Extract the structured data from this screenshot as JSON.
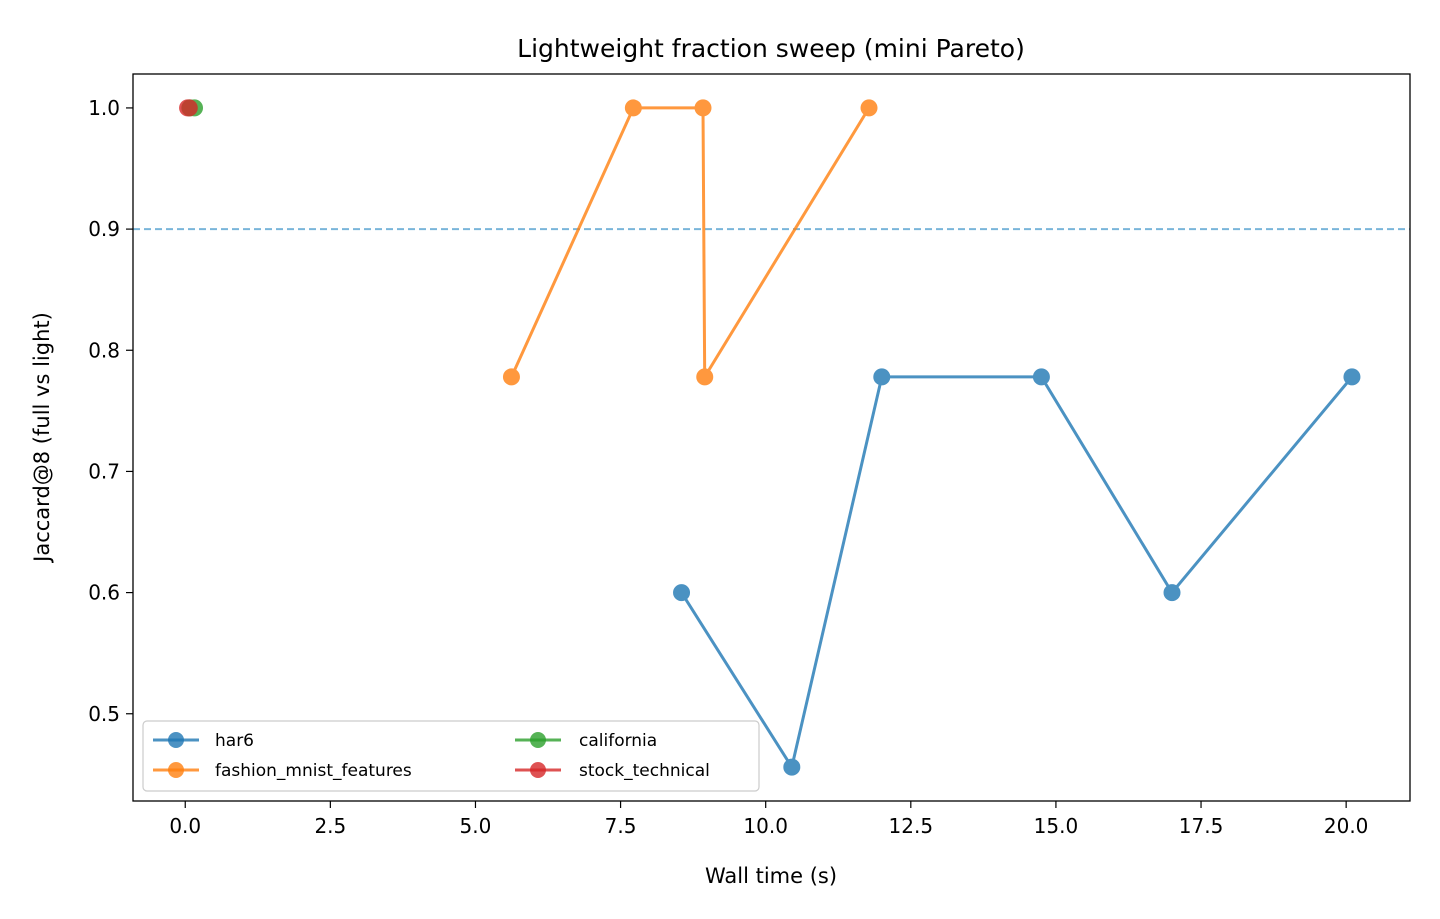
{
  "chart_data": {
    "type": "line",
    "title": "Lightweight fraction sweep (mini Pareto)",
    "xlabel": "Wall time (s)",
    "ylabel": "Jaccard@8 (full vs light)",
    "xlim": [
      -0.9,
      21.1
    ],
    "ylim": [
      0.428,
      1.028
    ],
    "xticks": [
      0.0,
      2.5,
      5.0,
      7.5,
      10.0,
      12.5,
      15.0,
      17.5,
      20.0
    ],
    "xtick_labels": [
      "0.0",
      "2.5",
      "5.0",
      "7.5",
      "10.0",
      "12.5",
      "15.0",
      "17.5",
      "20.0"
    ],
    "yticks": [
      0.5,
      0.6,
      0.7,
      0.8,
      0.9,
      1.0
    ],
    "ytick_labels": [
      "0.5",
      "0.6",
      "0.7",
      "0.8",
      "0.9",
      "1.0"
    ],
    "grid": false,
    "reference_line": {
      "y": 0.9,
      "style": "dashed",
      "color": "#6baed6"
    },
    "legend": {
      "placement": "lower-left",
      "columns": 2
    },
    "series": [
      {
        "name": "har6",
        "color": "#1f77b4",
        "points": [
          {
            "x": 8.55,
            "y": 0.6
          },
          {
            "x": 10.45,
            "y": 0.456
          },
          {
            "x": 12.0,
            "y": 0.778
          },
          {
            "x": 14.75,
            "y": 0.778
          },
          {
            "x": 17.0,
            "y": 0.6
          },
          {
            "x": 20.1,
            "y": 0.778
          }
        ]
      },
      {
        "name": "fashion_mnist_features",
        "color": "#ff7f0e",
        "points": [
          {
            "x": 5.62,
            "y": 0.778
          },
          {
            "x": 7.72,
            "y": 1.0
          },
          {
            "x": 8.92,
            "y": 1.0
          },
          {
            "x": 8.95,
            "y": 0.778
          },
          {
            "x": 11.78,
            "y": 1.0
          }
        ]
      },
      {
        "name": "california",
        "color": "#2ca02c",
        "points": [
          {
            "x": 0.08,
            "y": 1.0
          },
          {
            "x": 0.16,
            "y": 1.0
          }
        ]
      },
      {
        "name": "stock_technical",
        "color": "#d62728",
        "points": [
          {
            "x": 0.04,
            "y": 1.0
          },
          {
            "x": 0.07,
            "y": 1.0
          }
        ]
      }
    ]
  }
}
